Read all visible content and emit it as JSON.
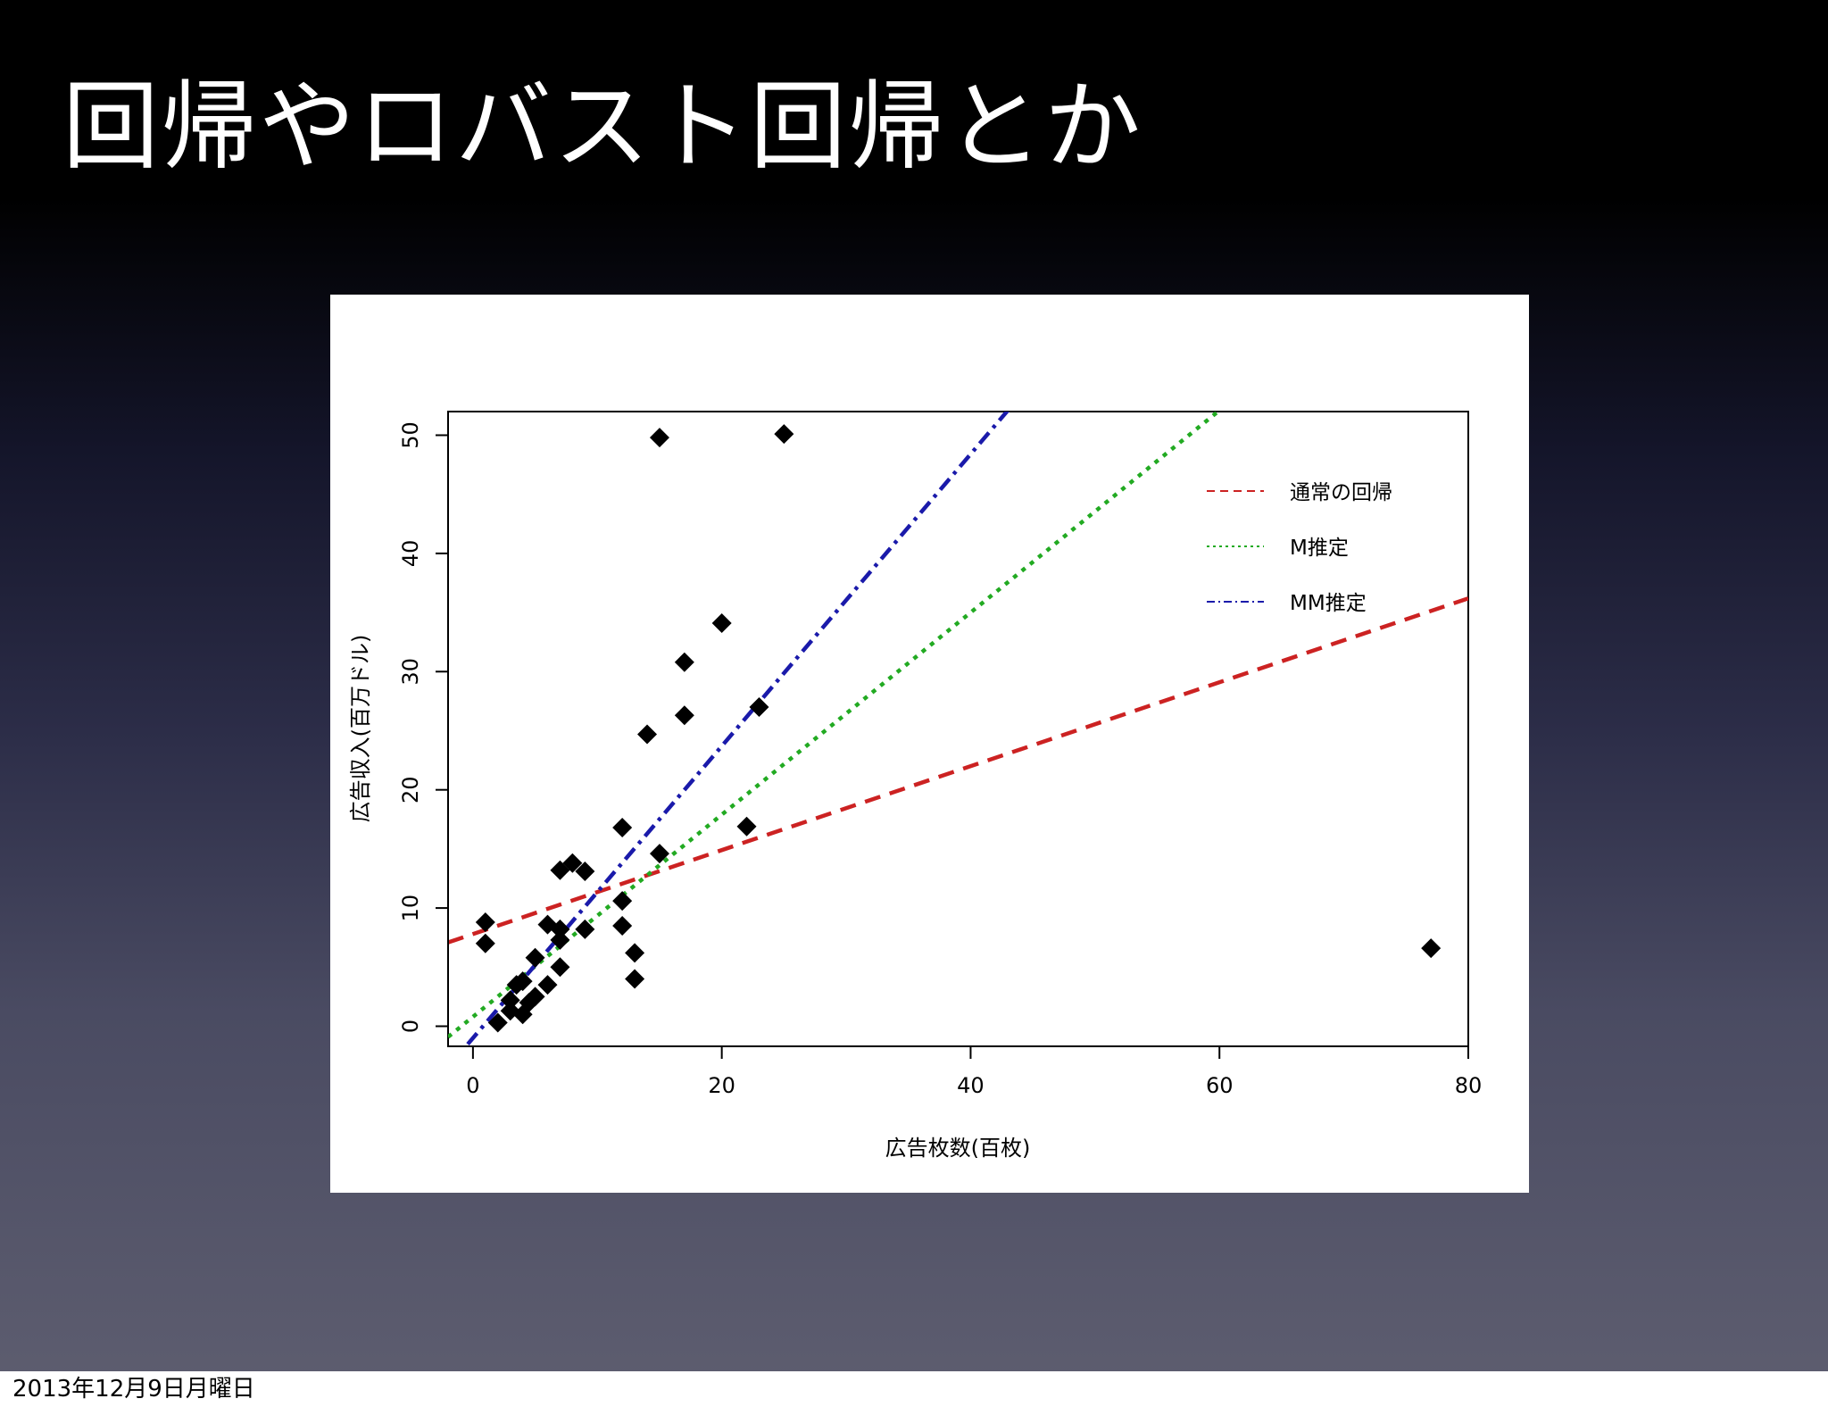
{
  "slide": {
    "title": "回帰やロバスト回帰とか",
    "footer_date": "2013年12月9日月曜日"
  },
  "chart_data": {
    "type": "scatter",
    "xlabel": "広告枚数(百枚)",
    "ylabel": "広告収入(百万ドル)",
    "xlim": [
      -2,
      80
    ],
    "ylim": [
      -1.7,
      52
    ],
    "xticks": [
      0,
      20,
      40,
      60,
      80
    ],
    "yticks": [
      0,
      10,
      20,
      30,
      40,
      50
    ],
    "grid": false,
    "legend_position": "top-right",
    "points": [
      {
        "x": 1,
        "y": 8.8
      },
      {
        "x": 1,
        "y": 7
      },
      {
        "x": 2,
        "y": 0.3
      },
      {
        "x": 3,
        "y": 2.2
      },
      {
        "x": 3,
        "y": 1.3
      },
      {
        "x": 3.5,
        "y": 3.5
      },
      {
        "x": 4,
        "y": 3.8
      },
      {
        "x": 4,
        "y": 1
      },
      {
        "x": 4.5,
        "y": 2
      },
      {
        "x": 5,
        "y": 2.5
      },
      {
        "x": 5,
        "y": 5.8
      },
      {
        "x": 6,
        "y": 3.5
      },
      {
        "x": 6,
        "y": 8.6
      },
      {
        "x": 7,
        "y": 8.2
      },
      {
        "x": 7,
        "y": 7.3
      },
      {
        "x": 7,
        "y": 5
      },
      {
        "x": 7,
        "y": 13.2
      },
      {
        "x": 8,
        "y": 13.8
      },
      {
        "x": 9,
        "y": 13.1
      },
      {
        "x": 9,
        "y": 8.2
      },
      {
        "x": 12,
        "y": 16.8
      },
      {
        "x": 12,
        "y": 10.6
      },
      {
        "x": 12,
        "y": 8.5
      },
      {
        "x": 13,
        "y": 6.2
      },
      {
        "x": 13,
        "y": 4
      },
      {
        "x": 14,
        "y": 24.7
      },
      {
        "x": 15,
        "y": 14.6
      },
      {
        "x": 15,
        "y": 49.8
      },
      {
        "x": 17,
        "y": 30.8
      },
      {
        "x": 17,
        "y": 26.3
      },
      {
        "x": 20,
        "y": 34.1
      },
      {
        "x": 22,
        "y": 16.9
      },
      {
        "x": 23,
        "y": 27
      },
      {
        "x": 25,
        "y": 50.1
      },
      {
        "x": 77,
        "y": 6.6
      }
    ],
    "series": [
      {
        "name": "通常の回帰",
        "color": "#cc2222",
        "dash": "dashed",
        "intercept": 7.8,
        "slope": 0.355
      },
      {
        "name": "M推定",
        "color": "#22aa22",
        "dash": "dotted",
        "intercept": 0.8,
        "slope": 0.855
      },
      {
        "name": "MM推定",
        "color": "#1a1aaa",
        "dash": "dotdash",
        "intercept": -1.0,
        "slope": 1.235
      }
    ]
  }
}
